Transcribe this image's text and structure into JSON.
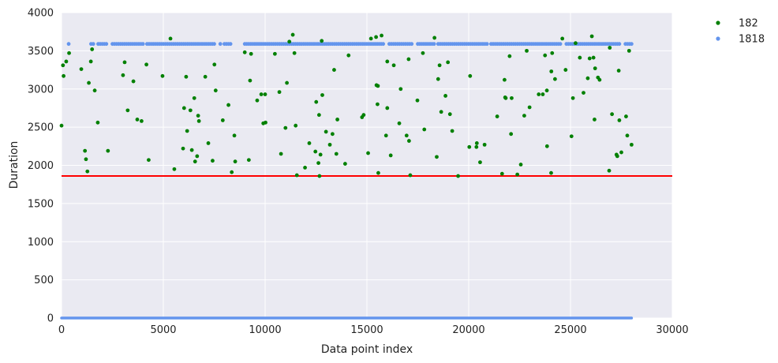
{
  "chart_data": {
    "type": "scatter",
    "title": "",
    "xlabel": "Data point index",
    "ylabel": "Duration",
    "xlim": [
      0,
      30000
    ],
    "ylim": [
      0,
      4000
    ],
    "xticks": [
      0,
      5000,
      10000,
      15000,
      20000,
      25000,
      30000
    ],
    "yticks": [
      0,
      500,
      1000,
      1500,
      2000,
      2500,
      3000,
      3500,
      4000
    ],
    "grid": true,
    "legend_position": "outside-top-right",
    "reference_line": {
      "y": 1860,
      "color": "#ff0000"
    },
    "series": [
      {
        "name": "182",
        "color": "#008000",
        "points": [
          [
            0,
            2520
          ],
          [
            70,
            3310
          ],
          [
            100,
            3170
          ],
          [
            230,
            3360
          ],
          [
            370,
            3470
          ],
          [
            970,
            3260
          ],
          [
            1150,
            2190
          ],
          [
            1200,
            2080
          ],
          [
            1270,
            1920
          ],
          [
            1340,
            3080
          ],
          [
            1440,
            3360
          ],
          [
            1500,
            3520
          ],
          [
            1630,
            2980
          ],
          [
            1780,
            2560
          ],
          [
            2280,
            2190
          ],
          [
            3020,
            3180
          ],
          [
            3100,
            3350
          ],
          [
            3250,
            2720
          ],
          [
            3530,
            3100
          ],
          [
            3720,
            2600
          ],
          [
            3930,
            2580
          ],
          [
            4170,
            3320
          ],
          [
            4280,
            2070
          ],
          [
            4960,
            3170
          ],
          [
            5350,
            3660
          ],
          [
            5540,
            1950
          ],
          [
            5970,
            2220
          ],
          [
            6020,
            2750
          ],
          [
            6120,
            3160
          ],
          [
            6170,
            2450
          ],
          [
            6330,
            2720
          ],
          [
            6400,
            2200
          ],
          [
            6520,
            2880
          ],
          [
            6560,
            2050
          ],
          [
            6660,
            2120
          ],
          [
            6710,
            2650
          ],
          [
            6750,
            2580
          ],
          [
            7060,
            3160
          ],
          [
            7210,
            2290
          ],
          [
            7420,
            2060
          ],
          [
            7510,
            3320
          ],
          [
            7570,
            2980
          ],
          [
            7920,
            2590
          ],
          [
            8200,
            2790
          ],
          [
            8360,
            1910
          ],
          [
            8490,
            2390
          ],
          [
            8530,
            2050
          ],
          [
            9000,
            3480
          ],
          [
            9200,
            2070
          ],
          [
            9260,
            3110
          ],
          [
            9310,
            3460
          ],
          [
            9610,
            2850
          ],
          [
            9810,
            2930
          ],
          [
            9910,
            2550
          ],
          [
            10000,
            2930
          ],
          [
            10020,
            2560
          ],
          [
            10480,
            3460
          ],
          [
            10700,
            2960
          ],
          [
            10780,
            2150
          ],
          [
            11000,
            2490
          ],
          [
            11070,
            3080
          ],
          [
            11190,
            3620
          ],
          [
            11360,
            3710
          ],
          [
            11440,
            3470
          ],
          [
            11500,
            2520
          ],
          [
            11560,
            1870
          ],
          [
            11960,
            1970
          ],
          [
            12170,
            2290
          ],
          [
            12470,
            2180
          ],
          [
            12510,
            2830
          ],
          [
            12620,
            2030
          ],
          [
            12650,
            2660
          ],
          [
            12670,
            1860
          ],
          [
            12720,
            2140
          ],
          [
            12780,
            3630
          ],
          [
            12810,
            2920
          ],
          [
            12990,
            2440
          ],
          [
            13180,
            2270
          ],
          [
            13310,
            2410
          ],
          [
            13390,
            3250
          ],
          [
            13500,
            2150
          ],
          [
            13550,
            2600
          ],
          [
            13930,
            2020
          ],
          [
            14100,
            3440
          ],
          [
            14760,
            2630
          ],
          [
            14840,
            2660
          ],
          [
            15060,
            2160
          ],
          [
            15200,
            3660
          ],
          [
            15450,
            3680
          ],
          [
            15470,
            3050
          ],
          [
            15520,
            2800
          ],
          [
            15540,
            3040
          ],
          [
            15560,
            1900
          ],
          [
            15720,
            3700
          ],
          [
            15940,
            2390
          ],
          [
            16000,
            3360
          ],
          [
            16000,
            2750
          ],
          [
            16170,
            2130
          ],
          [
            16320,
            3310
          ],
          [
            16590,
            2550
          ],
          [
            16660,
            3000
          ],
          [
            16950,
            2390
          ],
          [
            17050,
            3390
          ],
          [
            17070,
            2320
          ],
          [
            17130,
            1870
          ],
          [
            17480,
            2850
          ],
          [
            17750,
            3470
          ],
          [
            17820,
            2470
          ],
          [
            18320,
            3670
          ],
          [
            18430,
            2110
          ],
          [
            18500,
            3130
          ],
          [
            18570,
            3310
          ],
          [
            18650,
            2700
          ],
          [
            18860,
            2910
          ],
          [
            18980,
            3350
          ],
          [
            19080,
            2670
          ],
          [
            19190,
            2450
          ],
          [
            19480,
            1860
          ],
          [
            20030,
            2240
          ],
          [
            20070,
            3170
          ],
          [
            20380,
            2240
          ],
          [
            20400,
            2290
          ],
          [
            20560,
            2040
          ],
          [
            20780,
            2270
          ],
          [
            21400,
            2640
          ],
          [
            21640,
            1890
          ],
          [
            21760,
            3120
          ],
          [
            21790,
            2890
          ],
          [
            21820,
            2880
          ],
          [
            22010,
            3430
          ],
          [
            22080,
            2410
          ],
          [
            22110,
            2880
          ],
          [
            22390,
            1880
          ],
          [
            22560,
            2010
          ],
          [
            22730,
            2650
          ],
          [
            22850,
            3500
          ],
          [
            22990,
            2760
          ],
          [
            23440,
            2930
          ],
          [
            23640,
            2930
          ],
          [
            23750,
            3440
          ],
          [
            23840,
            2980
          ],
          [
            23850,
            2250
          ],
          [
            24050,
            1900
          ],
          [
            24060,
            3230
          ],
          [
            24100,
            3470
          ],
          [
            24240,
            3130
          ],
          [
            24600,
            3660
          ],
          [
            24760,
            3250
          ],
          [
            25050,
            2380
          ],
          [
            25120,
            2880
          ],
          [
            25250,
            3600
          ],
          [
            25460,
            3410
          ],
          [
            25640,
            2950
          ],
          [
            25850,
            3140
          ],
          [
            25940,
            3400
          ],
          [
            26050,
            3690
          ],
          [
            26130,
            3410
          ],
          [
            26180,
            2600
          ],
          [
            26210,
            3270
          ],
          [
            26350,
            3150
          ],
          [
            26430,
            3120
          ],
          [
            26900,
            1930
          ],
          [
            26930,
            3540
          ],
          [
            27040,
            2670
          ],
          [
            27260,
            2140
          ],
          [
            27300,
            2120
          ],
          [
            27370,
            3240
          ],
          [
            27400,
            2590
          ],
          [
            27500,
            2170
          ],
          [
            27730,
            2640
          ],
          [
            27790,
            2390
          ],
          [
            27880,
            3500
          ],
          [
            28000,
            2270
          ]
        ]
      },
      {
        "name": "1818",
        "color": "#6495ed",
        "points_at_y": 3590,
        "points_x": [
          350,
          1450,
          1560,
          1800,
          1900,
          2000,
          2100,
          2200,
          2500,
          2600,
          2700,
          2800,
          2900,
          3000,
          3100,
          3200,
          3300,
          3400,
          3500,
          3600,
          3700,
          3800,
          3900,
          4000,
          4200,
          4300,
          4400,
          4500,
          4600,
          4700,
          4800,
          4900,
          5000,
          5100,
          5200,
          5300,
          5400,
          5500,
          5600,
          5700,
          5800,
          5900,
          6000,
          6100,
          6200,
          6300,
          6400,
          6500,
          6600,
          6700,
          6800,
          6900,
          7000,
          7100,
          7200,
          7300,
          7400,
          7500,
          7800,
          8000,
          8100,
          8200,
          8300,
          9000,
          9100,
          9200,
          9300,
          9400,
          9500,
          9600,
          9700,
          9800,
          9900,
          10000,
          10100,
          10200,
          10300,
          10400,
          10500,
          10600,
          10700,
          10800,
          10900,
          11000,
          11100,
          11200,
          11300,
          11400,
          11500,
          11600,
          11700,
          11800,
          11900,
          12000,
          12100,
          12200,
          12300,
          12400,
          12500,
          12600,
          12700,
          12800,
          12900,
          13000,
          13100,
          13200,
          13300,
          13400,
          13500,
          13600,
          13700,
          13800,
          13900,
          14000,
          14100,
          14200,
          14300,
          14400,
          14500,
          14600,
          14700,
          14800,
          14900,
          15000,
          15100,
          15200,
          15300,
          15400,
          15500,
          15600,
          15700,
          15800,
          16100,
          16200,
          16300,
          16400,
          16500,
          16600,
          16700,
          16800,
          16900,
          17000,
          17100,
          17200,
          17500,
          17600,
          17700,
          17800,
          17900,
          18000,
          18100,
          18200,
          18300,
          18500,
          18600,
          18700,
          18800,
          18900,
          19000,
          19100,
          19200,
          19300,
          19400,
          19500,
          19600,
          19700,
          19800,
          19900,
          20000,
          20100,
          20200,
          20300,
          20400,
          20500,
          20600,
          20700,
          20800,
          20900,
          21100,
          21200,
          21300,
          21400,
          21500,
          21600,
          21700,
          21800,
          21900,
          22000,
          22100,
          22200,
          22300,
          22400,
          22500,
          22600,
          22700,
          22800,
          22900,
          23000,
          23100,
          23200,
          23300,
          23400,
          23500,
          23600,
          23700,
          23800,
          23900,
          24000,
          24100,
          24200,
          24300,
          24400,
          24500,
          24800,
          24900,
          25000,
          25100,
          25200,
          25300,
          25400,
          25500,
          25600,
          25700,
          25800,
          25900,
          26000,
          26100,
          26200,
          26300,
          26400,
          26500,
          26600,
          26700,
          26800,
          26900,
          27000,
          27100,
          27200,
          27300,
          27400,
          27700,
          27800,
          27900,
          28000
        ],
        "baseline_range": [
          0,
          28000
        ],
        "baseline_y": 0
      }
    ]
  }
}
